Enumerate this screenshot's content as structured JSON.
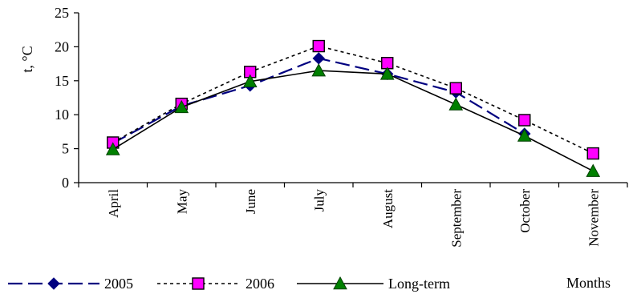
{
  "chart_data": {
    "type": "line",
    "title": "",
    "xlabel": "Months",
    "ylabel": "t, °C",
    "categories": [
      "April",
      "May",
      "June",
      "July",
      "August",
      "September",
      "October",
      "November"
    ],
    "ylim": [
      0,
      25
    ],
    "yticks": [
      0,
      5,
      10,
      15,
      20,
      25
    ],
    "grid": false,
    "legend": "bottom",
    "series": [
      {
        "name": "2005",
        "values": [
          5.8,
          11.3,
          14.3,
          18.3,
          16.0,
          13.3,
          7.2,
          null
        ],
        "color": "#000080",
        "dash": "dashed",
        "marker": "diamond"
      },
      {
        "name": "2006",
        "values": [
          5.9,
          11.6,
          16.3,
          20.1,
          17.6,
          13.9,
          9.2,
          4.3
        ],
        "color": "#000000",
        "dash": "dotted",
        "marker": "square",
        "marker_color": "#ff00ff"
      },
      {
        "name": "Long-term",
        "values": [
          4.9,
          11.1,
          14.9,
          16.5,
          16.0,
          11.5,
          6.9,
          1.7
        ],
        "color": "#000000",
        "dash": "solid",
        "marker": "triangle",
        "marker_color": "#008000"
      }
    ]
  }
}
